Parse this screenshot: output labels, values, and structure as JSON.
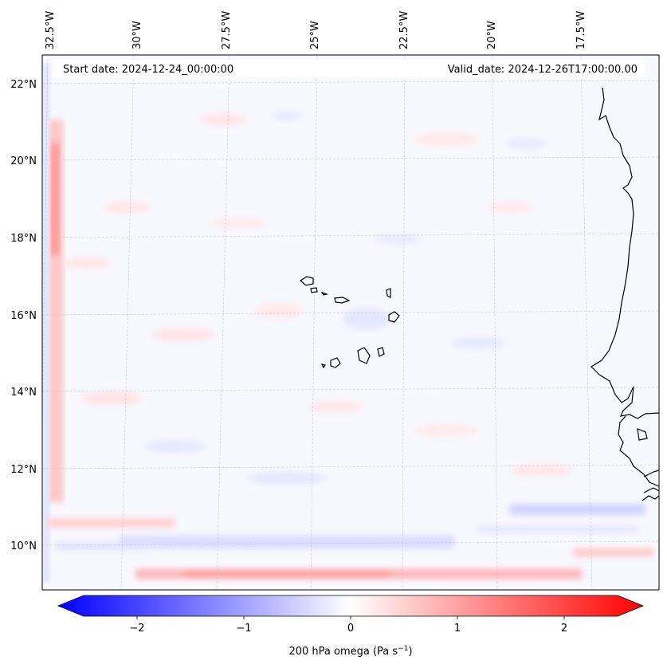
{
  "map": {
    "start_date": "Start date: 2024-12-24_00:00:00",
    "valid_date": "Valid_date: 2024-12-26T17:00:00.00",
    "lon_labels": [
      "32.5°W",
      "30°W",
      "27.5°W",
      "25°W",
      "22.5°W",
      "20°W",
      "17.5°W"
    ],
    "lat_labels": [
      "22°N",
      "20°N",
      "18°N",
      "16°N",
      "14°N",
      "12°N",
      "10°N"
    ],
    "colors": {
      "negative": "#0000ff",
      "positive": "#ff0000",
      "neutral": "#ffffff",
      "coast": "#000000"
    }
  },
  "colorbar": {
    "ticks": [
      "−2",
      "−1",
      "0",
      "1",
      "2"
    ],
    "label": "200 hPa omega (Pa s",
    "label_sup": "−1",
    "label_end": ")",
    "range": [
      -2.7,
      2.7
    ]
  }
}
